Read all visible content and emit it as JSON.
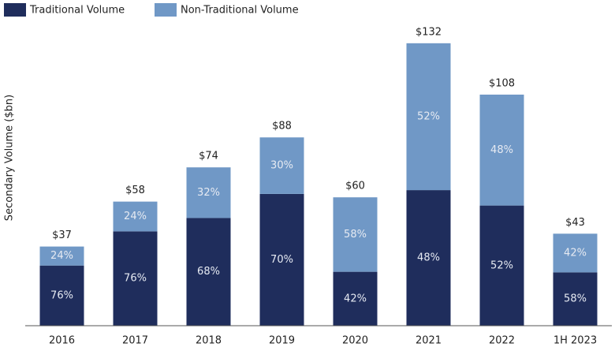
{
  "chart_data": {
    "type": "bar",
    "y_label": "Secondary Volume ($bn)",
    "categories": [
      "2016",
      "2017",
      "2018",
      "2019",
      "2020",
      "2021",
      "2022",
      "1H 2023"
    ],
    "totals": [
      37,
      58,
      74,
      88,
      60,
      132,
      108,
      43
    ],
    "total_labels": [
      "$37",
      "$58",
      "$74",
      "$88",
      "$60",
      "$132",
      "$108",
      "$43"
    ],
    "series": [
      {
        "name": "Traditional Volume",
        "color": "#1f2d5c",
        "values": [
          76,
          76,
          68,
          70,
          42,
          48,
          52,
          58
        ],
        "value_labels": [
          "76%",
          "76%",
          "68%",
          "70%",
          "42%",
          "48%",
          "52%",
          "58%"
        ]
      },
      {
        "name": "Non-Traditional Volume",
        "color": "#7098c6",
        "values": [
          24,
          24,
          32,
          30,
          58,
          52,
          48,
          42
        ],
        "value_labels": [
          "24%",
          "24%",
          "32%",
          "30%",
          "58%",
          "52%",
          "48%",
          "42%"
        ]
      }
    ],
    "ylim": [
      0,
      150
    ]
  }
}
